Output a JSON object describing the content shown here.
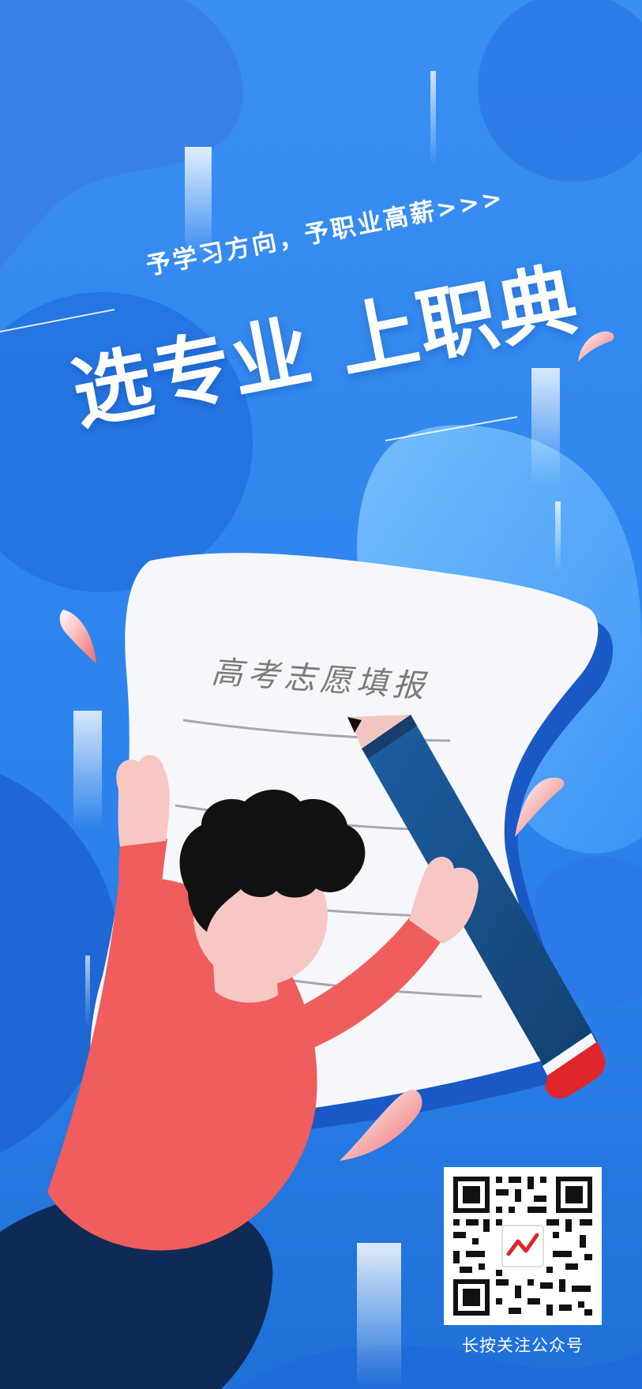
{
  "poster": {
    "subtitle": "予学习方向，予职业高薪>>>",
    "title": "选专业 上职典",
    "paper_heading": "高考志愿填报",
    "qr_caption": "长按关注公众号"
  },
  "colors": {
    "background": "#2f86ee",
    "paper": "#f6f7fa",
    "shirt": "#ef5d5d",
    "pants": "#0f2a55",
    "pencil": "#1e4f8a",
    "eraser_band": "#e0262b",
    "skin": "#f7c7c3",
    "hair": "#111111"
  },
  "icons": [
    "qr-code-icon",
    "trend-logo-icon",
    "droplet-icon",
    "pencil-icon"
  ]
}
